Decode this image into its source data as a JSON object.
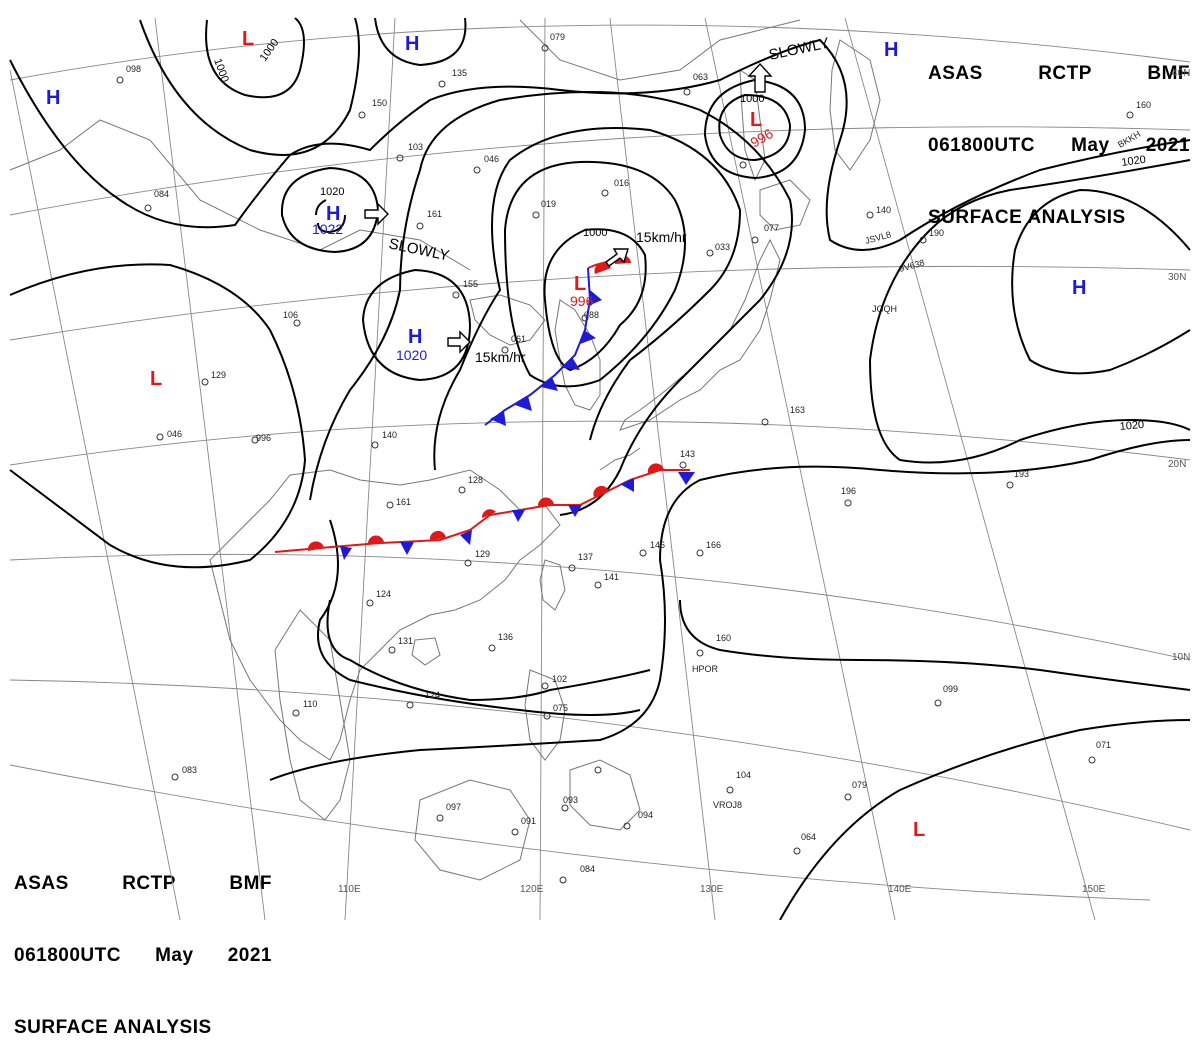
{
  "header": {
    "line1": [
      "ASAS",
      "RCTP",
      "BMF"
    ],
    "line2": [
      "061800UTC",
      "May",
      "2021"
    ],
    "line3": "SURFACE ANALYSIS"
  },
  "colors": {
    "isobar": "#000000",
    "grid": "#888888",
    "coast": "#777777",
    "high_low_blue": "#1c1cd4",
    "low_red": "#e01818",
    "warm_front": "#e01818",
    "cold_front": "#1c1cd4"
  },
  "lon_labels": [
    "110E",
    "120E",
    "130E",
    "140E",
    "150E"
  ],
  "lat_labels": [
    "40N",
    "30N",
    "20N",
    "10N"
  ],
  "pressure_centers": {
    "high_nw": {
      "letter": "H",
      "value": ""
    },
    "low_top": {
      "letter": "L",
      "value": ""
    },
    "high_top": {
      "letter": "H",
      "value": ""
    },
    "high_mongolia": {
      "letter": "H",
      "value": "1022"
    },
    "high_china": {
      "letter": "H",
      "value": "1020"
    },
    "low_korea": {
      "letter": "L",
      "value": "996"
    },
    "low_kamchatka": {
      "letter": "L",
      "value": "996"
    },
    "high_ne": {
      "letter": "H",
      "value": ""
    },
    "high_pacific": {
      "letter": "H",
      "value": ""
    },
    "low_west": {
      "letter": "L",
      "value": ""
    },
    "low_se": {
      "letter": "L",
      "value": ""
    }
  },
  "isobar_labels": {
    "l1": "1000",
    "l2": "1000",
    "l3": "1020",
    "l4": "1000",
    "l5": "1000",
    "l6": "1020",
    "l7": "1020"
  },
  "motion_labels": {
    "m1": "SLOWLY",
    "m2": "SLOWLY",
    "m3": "15km/hr",
    "m4": "15km/hr"
  },
  "station_labels": {
    "s1": "079",
    "s2": "135",
    "s3": "150",
    "s4": "103",
    "s5": "046",
    "s6": "019",
    "s7": "016",
    "s8": "063",
    "s9": "084",
    "s10": "098",
    "s11": "161",
    "s12": "155",
    "s13": "061",
    "s14": "088",
    "s15": "077",
    "s16": "033",
    "s17": "140",
    "s18": "190",
    "s19": "160",
    "s20": "106",
    "s21": "129",
    "s22": "046",
    "s23": "996",
    "s24": "140",
    "s25": "128",
    "s26": "161",
    "s27": "129",
    "s28": "137",
    "s29": "141",
    "s30": "146",
    "s31": "166",
    "s32": "196",
    "s33": "193",
    "s34": "124",
    "s35": "131",
    "s36": "136",
    "s37": "124",
    "s38": "110",
    "s39": "102",
    "s40": "075",
    "s41": "160",
    "s42": "099",
    "s43": "104",
    "s44": "097",
    "s45": "091",
    "s46": "093",
    "s47": "094",
    "s48": "079",
    "s49": "064",
    "s50": "084",
    "s51": "083",
    "s52": "071",
    "s53": "143",
    "s54": "163",
    "s55": "HPOR",
    "s56": "VROJ8",
    "s57": "JSVL8",
    "s58": "BKKH",
    "s59": "9V638",
    "s60": "JGQH"
  }
}
